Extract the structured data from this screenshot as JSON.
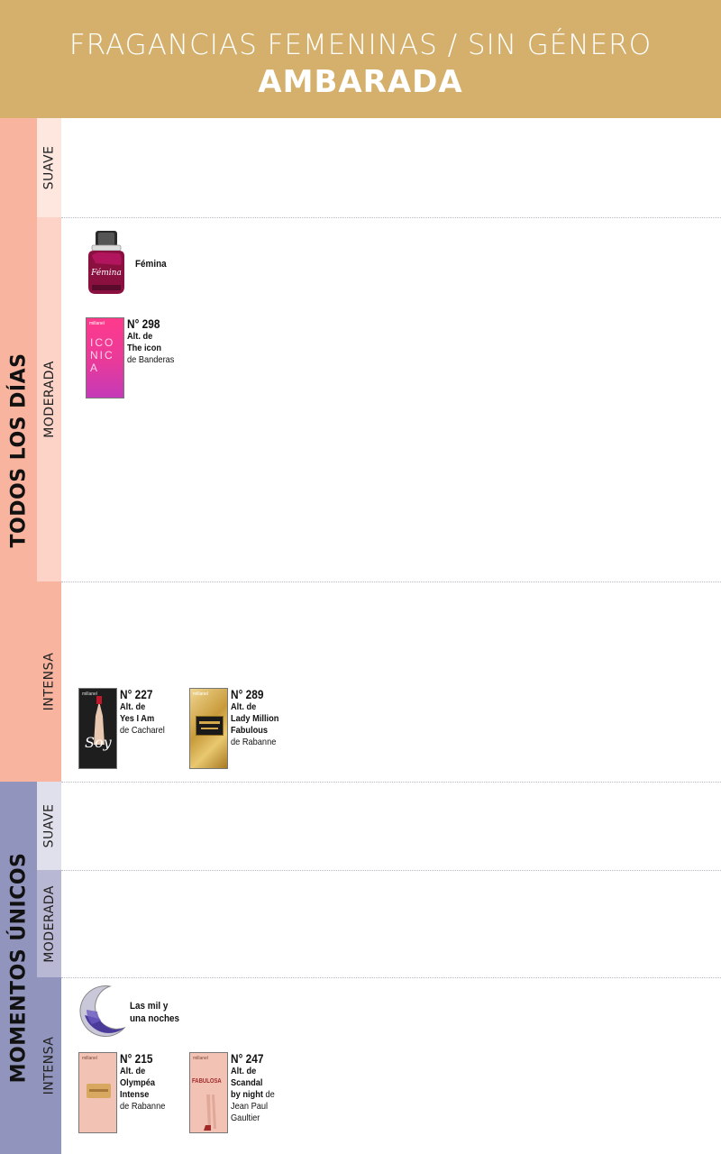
{
  "header": {
    "subtitle": "FRAGANCIAS FEMENINAS / SIN GÉNERO",
    "title": "AMBARADA"
  },
  "colors": {
    "header_bg": "#d4b06c",
    "todos_bar": "#f8b49f",
    "todos_suave": "#fde7df",
    "todos_moderada": "#fcd3c6",
    "todos_intensa": "#f8b49f",
    "momentos_bar": "#9194bd",
    "momentos_suave": "#e0e0ec",
    "momentos_moderada": "#b8b8d4",
    "momentos_intensa": "#9194bd"
  },
  "groups": {
    "todos": {
      "label": "TODOS LOS DÍAS",
      "suave": "SUAVE",
      "moderada": "MODERADA",
      "intensa": "INTENSA"
    },
    "momentos": {
      "label": "MOMENTOS ÚNICOS",
      "suave": "SUAVE",
      "moderada": "MODERADA",
      "intensa": "INTENSA"
    }
  },
  "bottles": {
    "femina": {
      "label": "Fémina",
      "icon": "femina-bottle-icon"
    },
    "milnoches": {
      "label": "Las mil y\nuna noches",
      "icon": "moon-bottle-icon"
    }
  },
  "products": {
    "p298": {
      "number": "N° 298",
      "alt": "Alt. de",
      "name": "The icon",
      "brand": "de Banderas",
      "box_text": "ICONICA",
      "icon": "iconica-box-icon"
    },
    "p227": {
      "number": "N° 227",
      "alt": "Alt. de",
      "name": "Yes I Am",
      "brand": "de Cacharel",
      "box_text": "Soy",
      "icon": "soy-box-icon"
    },
    "p289": {
      "number": "N° 289",
      "alt": "Alt. de",
      "name": "Lady Million\nFabulous",
      "brand": "de Rabanne",
      "icon": "gold-box-icon"
    },
    "p215": {
      "number": "N° 215",
      "alt": "Alt. de",
      "name": "Olympéa\nIntense",
      "brand": "de Rabanne",
      "icon": "olympea-box-icon"
    },
    "p247": {
      "number": "N° 247",
      "alt": "Alt. de",
      "name": "Scandal\nby night",
      "brand_inline": "de",
      "brand": "Jean Paul\nGaultier",
      "box_text": "FABULOSA",
      "icon": "fabulosa-box-icon"
    }
  }
}
